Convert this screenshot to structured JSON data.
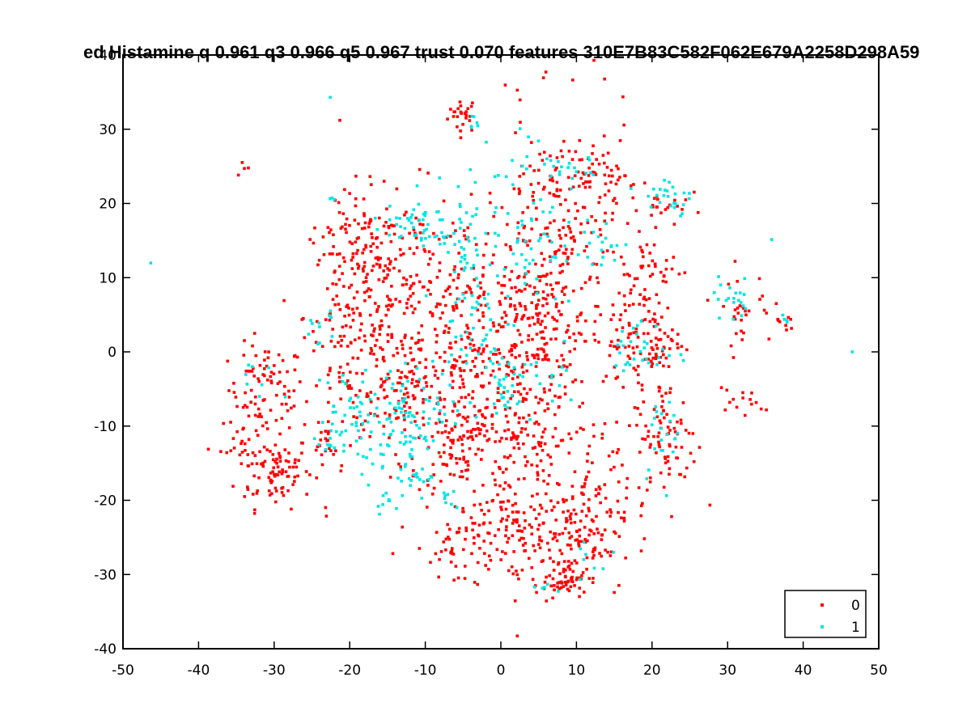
{
  "chart_data": {
    "type": "scatter",
    "title": "ed Histamine q 0.961 q3 0.966 q5 0.967 trust 0.070 features 310E7B83C582F062E679A2258D298A59",
    "xlabel": "",
    "ylabel": "",
    "xlim": [
      -50,
      50
    ],
    "ylim": [
      -40,
      40
    ],
    "xticks": [
      -50,
      -40,
      -30,
      -20,
      -10,
      0,
      10,
      20,
      30,
      40,
      50
    ],
    "yticks": [
      -40,
      -30,
      -20,
      -10,
      0,
      10,
      20,
      30,
      40
    ],
    "grid": false,
    "legend_position": "bottom-right",
    "series": [
      {
        "name": "0",
        "color": "#ff0000",
        "clusters": [
          {
            "x": -5,
            "y": 32,
            "sx": 1.0,
            "sy": 1.2,
            "n": 25
          },
          {
            "x": -34,
            "y": 24.5,
            "sx": 0.6,
            "sy": 0.5,
            "n": 4
          },
          {
            "x": -31,
            "y": -5,
            "sx": 2.5,
            "sy": 3.0,
            "n": 80
          },
          {
            "x": -30,
            "y": -16,
            "sx": 2.5,
            "sy": 2.5,
            "n": 90
          },
          {
            "x": -34,
            "y": -12,
            "sx": 1.5,
            "sy": 2.0,
            "n": 25
          },
          {
            "x": -23,
            "y": -12,
            "sx": 1.0,
            "sy": 1.5,
            "n": 20
          },
          {
            "x": -20,
            "y": 5,
            "sx": 3.0,
            "sy": 8.0,
            "n": 160
          },
          {
            "x": -12,
            "y": 5,
            "sx": 4.0,
            "sy": 8.0,
            "n": 180
          },
          {
            "x": -4,
            "y": -2,
            "sx": 4.0,
            "sy": 10.0,
            "n": 240
          },
          {
            "x": 4,
            "y": -10,
            "sx": 4.0,
            "sy": 9.0,
            "n": 220
          },
          {
            "x": 2,
            "y": -24,
            "sx": 4.0,
            "sy": 2.5,
            "n": 100
          },
          {
            "x": -6,
            "y": -26,
            "sx": 2.0,
            "sy": 2.0,
            "n": 40
          },
          {
            "x": 8,
            "y": 16,
            "sx": 5.0,
            "sy": 8.0,
            "n": 230
          },
          {
            "x": 10,
            "y": -26,
            "sx": 3.0,
            "sy": 3.0,
            "n": 90
          },
          {
            "x": 12,
            "y": -20,
            "sx": 2.5,
            "sy": 5.0,
            "n": 70
          },
          {
            "x": 8,
            "y": -31,
            "sx": 2.0,
            "sy": 1.0,
            "n": 40
          },
          {
            "x": 19,
            "y": 2,
            "sx": 2.5,
            "sy": 4.0,
            "n": 120
          },
          {
            "x": 22,
            "y": -12,
            "sx": 2.0,
            "sy": 4.0,
            "n": 80
          },
          {
            "x": 20,
            "y": 11,
            "sx": 2.5,
            "sy": 2.0,
            "n": 30
          },
          {
            "x": 22,
            "y": 20,
            "sx": 1.5,
            "sy": 1.5,
            "n": 20
          },
          {
            "x": 32,
            "y": 6,
            "sx": 2.0,
            "sy": 2.5,
            "n": 30
          },
          {
            "x": 32,
            "y": -7,
            "sx": 2.0,
            "sy": 1.0,
            "n": 15
          },
          {
            "x": 37.5,
            "y": 4,
            "sx": 0.6,
            "sy": 0.8,
            "n": 8
          },
          {
            "x": -6,
            "y": -12,
            "sx": 2.0,
            "sy": 3.0,
            "n": 60
          },
          {
            "x": 13,
            "y": 24,
            "sx": 2.0,
            "sy": 1.5,
            "n": 35
          },
          {
            "x": 5,
            "y": 4,
            "sx": 3.0,
            "sy": 4.0,
            "n": 100
          },
          {
            "x": -14,
            "y": -5,
            "sx": 3.0,
            "sy": 4.0,
            "n": 80
          },
          {
            "x": -18,
            "y": 15,
            "sx": 3.0,
            "sy": 3.0,
            "n": 60
          }
        ]
      },
      {
        "name": "1",
        "color": "#00e5e5",
        "clusters": [
          {
            "x": -46.5,
            "y": 12,
            "sx": 0.1,
            "sy": 0.1,
            "n": 1
          },
          {
            "x": -22.5,
            "y": 34.5,
            "sx": 0.1,
            "sy": 0.1,
            "n": 1
          },
          {
            "x": 36,
            "y": 15,
            "sx": 0.1,
            "sy": 0.1,
            "n": 1
          },
          {
            "x": 46.5,
            "y": 0,
            "sx": 0.1,
            "sy": 0.1,
            "n": 1
          },
          {
            "x": -3.5,
            "y": 31,
            "sx": 0.6,
            "sy": 0.8,
            "n": 6
          },
          {
            "x": -12,
            "y": 17,
            "sx": 2.5,
            "sy": 1.5,
            "n": 45
          },
          {
            "x": -5,
            "y": 15,
            "sx": 1.5,
            "sy": 4.0,
            "n": 40
          },
          {
            "x": 3,
            "y": 17,
            "sx": 2.5,
            "sy": 6.0,
            "n": 60
          },
          {
            "x": -11,
            "y": -8,
            "sx": 3.0,
            "sy": 3.0,
            "n": 80
          },
          {
            "x": -20,
            "y": -8,
            "sx": 2.0,
            "sy": 3.0,
            "n": 40
          },
          {
            "x": -16,
            "y": -14,
            "sx": 2.0,
            "sy": 2.0,
            "n": 25
          },
          {
            "x": -4,
            "y": 4,
            "sx": 2.0,
            "sy": 4.0,
            "n": 45
          },
          {
            "x": -24,
            "y": 4,
            "sx": 1.0,
            "sy": 1.5,
            "n": 12
          },
          {
            "x": 22,
            "y": 21,
            "sx": 2.0,
            "sy": 1.8,
            "n": 25
          },
          {
            "x": 19,
            "y": 0,
            "sx": 2.0,
            "sy": 2.0,
            "n": 30
          },
          {
            "x": 21,
            "y": -10,
            "sx": 1.5,
            "sy": 3.0,
            "n": 20
          },
          {
            "x": 31,
            "y": 7,
            "sx": 1.5,
            "sy": 1.5,
            "n": 20
          },
          {
            "x": 37,
            "y": 4,
            "sx": 0.5,
            "sy": 0.5,
            "n": 4
          },
          {
            "x": -32,
            "y": -4,
            "sx": 1.5,
            "sy": 1.5,
            "n": 8
          },
          {
            "x": 9,
            "y": 24,
            "sx": 2.0,
            "sy": 2.0,
            "n": 20
          },
          {
            "x": 13,
            "y": 14,
            "sx": 1.5,
            "sy": 2.0,
            "n": 20
          },
          {
            "x": -23,
            "y": -12,
            "sx": 1.0,
            "sy": 1.0,
            "n": 8
          },
          {
            "x": -15,
            "y": -20,
            "sx": 0.8,
            "sy": 0.8,
            "n": 8
          },
          {
            "x": -11,
            "y": -17,
            "sx": 1.5,
            "sy": 1.0,
            "n": 15
          },
          {
            "x": 6,
            "y": -4,
            "sx": 3.0,
            "sy": 2.0,
            "n": 25
          },
          {
            "x": 0,
            "y": -5,
            "sx": 2.0,
            "sy": 2.0,
            "n": 20
          },
          {
            "x": 6,
            "y": -32,
            "sx": 1.0,
            "sy": 0.5,
            "n": 6
          },
          {
            "x": 13,
            "y": -28,
            "sx": 1.5,
            "sy": 1.5,
            "n": 8
          },
          {
            "x": -22,
            "y": 20.5,
            "sx": 0.4,
            "sy": 0.4,
            "n": 3
          },
          {
            "x": -7,
            "y": -20,
            "sx": 0.8,
            "sy": 0.8,
            "n": 8
          }
        ]
      }
    ]
  }
}
